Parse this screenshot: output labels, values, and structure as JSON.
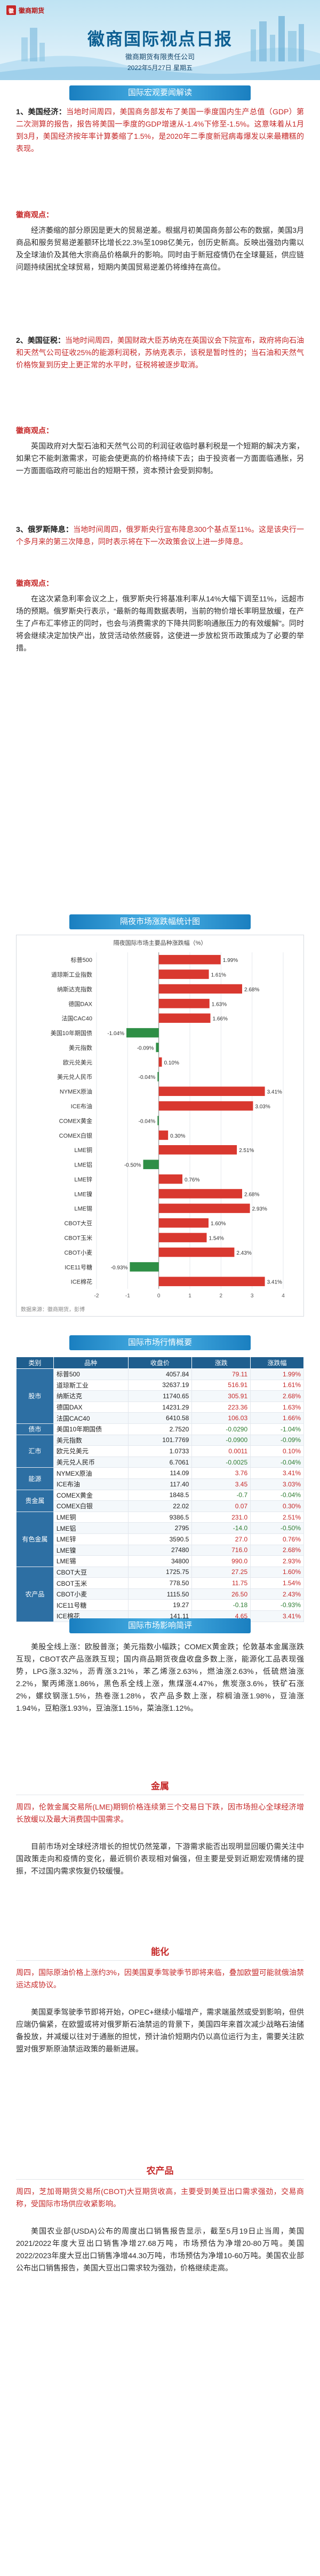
{
  "header": {
    "logo_mark": "徽",
    "logo_text": "徽商期货",
    "title": "徽商国际视点日报",
    "company": "徽商期货有限责任公司",
    "date": "2022年5月27日  星期五"
  },
  "sections": {
    "macro_title": "国际宏观要闻解读",
    "chart_title": "隔夜市场涨跌幅统计图",
    "table_title": "国际市场行情概要",
    "impact_title": "国际市场影响简评"
  },
  "news": [
    {
      "lead_title": "1、美国经济：",
      "lead_body": "当地时间周四，美国商务部发布了美国一季度国内生产总值（GDP）第二次测算的报告，报告将美国一季度的GDP增速从-1.4%下修至-1.5%。这意味着从1月到3月，美国经济按年率计算萎缩了1.5%，是2020年二季度新冠病毒爆发以来最糟糕的表现。",
      "comment_tag": "徽商观点：",
      "comment": "经济萎缩的部分原因是更大的贸易逆差。根据月初美国商务部公布的数据，美国3月商品和服务贸易逆差额环比增长22.3%至1098亿美元，创历史新高。反映出强劲内需以及全球油价及其他大宗商品价格飙升的影响。同时由于新冠疫情仍在全球蔓延，供应链问题持续困扰全球贸易，短期内美国贸易逆差仍将维持在高位。"
    },
    {
      "lead_title": "2、美国征税：",
      "lead_body": "当地时间周四，美国财政大臣苏纳克在英国议会下院宣布，政府将向石油和天然气公司征收25%的能源利润税，苏纳克表示，该税是暂时性的；当石油和天然气价格恢复到历史上更正常的水平时，征税将被逐步取消。",
      "comment_tag": "徽商观点：",
      "comment": "英国政府对大型石油和天然气公司的利润征收临时暴利税是一个短期的解决方案，如果它不能刺激需求，可能会使更高的价格持续下去；由于投资者一方面面临通胀，另一方面面临政府可能出台的短期干预，资本预计会受到抑制。"
    },
    {
      "lead_title": "3、俄罗斯降息：",
      "lead_body": "当地时间周四，俄罗斯央行宣布降息300个基点至11%。这是该央行一个多月来的第三次降息，同时表示将在下一次政策会议上进一步降息。",
      "comment_tag": "徽商观点：",
      "comment": "在这次紧急利率会议之上，俄罗斯央行将基准利率从14%大幅下调至11%，远超市场的预期。俄罗斯央行表示，“最新的每周数据表明，当前的物价增长率明显放缓，在产生了卢布汇率修正的同时，也会与消费需求的下降共同影响通胀压力的有效缓解”。同时将会继续决定加快产出，放贷活动依然疲弱，这使进一步放松货币政策成为了必要的举措。"
    }
  ],
  "chart_data": {
    "type": "bar",
    "title": "隔夜国际市场主要品种涨跌幅（%）",
    "legend": "bottom",
    "categories": [
      "标普500",
      "道琼斯工业指数",
      "纳斯达克指数",
      "德国DAX",
      "法国CAC40",
      "美国10年期国债",
      "美元指数",
      "欧元兑美元",
      "美元兑人民币",
      "NYMEX原油",
      "ICE布油",
      "COMEX黄金",
      "COMEX白银",
      "LME铜",
      "LME铝",
      "LME锌",
      "LME镍",
      "LME锡",
      "CBOT大豆",
      "CBOT玉米",
      "CBOT小麦",
      "ICE11号糖",
      "ICE棉花"
    ],
    "values": [
      1.99,
      1.61,
      2.68,
      1.63,
      1.66,
      -1.04,
      -0.09,
      0.1,
      -0.04,
      3.41,
      3.03,
      -0.04,
      0.3,
      2.51,
      -0.5,
      0.76,
      2.68,
      2.93,
      1.6,
      1.54,
      2.43,
      -0.93,
      3.41
    ],
    "ylabel": "",
    "xlabel": "",
    "ylim": [
      -2,
      4
    ],
    "source_note": "数据来源：徽商期货，彭博"
  },
  "table": {
    "headers": [
      "类别",
      "品种",
      "收盘价",
      "涨跌",
      "涨跌幅"
    ],
    "groups": [
      {
        "name": "股市",
        "rows": [
          [
            "标普500",
            "4057.84",
            "79.11",
            "1.99%"
          ],
          [
            "道琼斯工业",
            "32637.19",
            "516.91",
            "1.61%"
          ],
          [
            "纳斯达克",
            "11740.65",
            "305.91",
            "2.68%"
          ],
          [
            "德国DAX",
            "14231.29",
            "223.36",
            "1.63%"
          ],
          [
            "法国CAC40",
            "6410.58",
            "106.03",
            "1.66%"
          ]
        ]
      },
      {
        "name": "债市",
        "rows": [
          [
            "美国10年期国债",
            "2.7520",
            "-0.0290",
            "-1.04%"
          ]
        ]
      },
      {
        "name": "汇市",
        "rows": [
          [
            "美元指数",
            "101.7769",
            "-0.0900",
            "-0.09%"
          ],
          [
            "欧元兑美元",
            "1.0733",
            "0.0011",
            "0.10%"
          ],
          [
            "美元兑人民币",
            "6.7061",
            "-0.0025",
            "-0.04%"
          ]
        ]
      },
      {
        "name": "能源",
        "rows": [
          [
            "NYMEX原油",
            "114.09",
            "3.76",
            "3.41%"
          ],
          [
            "ICE布油",
            "117.40",
            "3.45",
            "3.03%"
          ]
        ]
      },
      {
        "name": "贵金属",
        "rows": [
          [
            "COMEX黄金",
            "1848.5",
            "-0.7",
            "-0.04%"
          ],
          [
            "COMEX白银",
            "22.02",
            "0.07",
            "0.30%"
          ]
        ]
      },
      {
        "name": "有色金属",
        "rows": [
          [
            "LME铜",
            "9386.5",
            "231.0",
            "2.51%"
          ],
          [
            "LME铝",
            "2795",
            "-14.0",
            "-0.50%"
          ],
          [
            "LME锌",
            "3590.5",
            "27.0",
            "0.76%"
          ],
          [
            "LME镍",
            "27480",
            "716.0",
            "2.68%"
          ],
          [
            "LME锡",
            "34800",
            "990.0",
            "2.93%"
          ]
        ]
      },
      {
        "name": "农产品",
        "rows": [
          [
            "CBOT大豆",
            "1725.75",
            "27.25",
            "1.60%"
          ],
          [
            "CBOT玉米",
            "778.50",
            "11.75",
            "1.54%"
          ],
          [
            "CBOT小麦",
            "1115.50",
            "26.50",
            "2.43%"
          ],
          [
            "ICE11号糖",
            "19.27",
            "-0.18",
            "-0.93%"
          ],
          [
            "ICE棉花",
            "141.11",
            "4.65",
            "3.41%"
          ]
        ]
      }
    ]
  },
  "impact": {
    "intro": "美股全线上涨：欧股普涨；美元指数小幅跌；COMEX黄金跌；伦敦基本金属涨跌互现，CBOT农产品涨跌互现；国内商品期货夜盘收盘多数上涨，能源化工品表现强势，LPG涨3.32%，沥青涨3.21%，苯乙烯涨2.63%，燃油涨2.63%，低硫燃油涨2.2%，聚丙烯涨1.86%，黑色系全线上涨，焦煤涨4.47%，焦炭涨3.6%，铁矿石涨2%，螺纹钢涨1.5%，热卷涨1.28%，农产品多数上涨，棕榈油涨1.98%，豆油涨1.94%，豆粕涨1.93%，豆油涨1.15%，菜油涨1.12%。",
    "blocks": [
      {
        "heading": "金属",
        "lead": "周四，伦敦金属交易所(LME)期铜价格连续第三个交易日下跌，因市场担心全球经济增长放缓以及最大消费国中国需求。",
        "body": "目前市场对全球经济增长的担忧仍然笼罩，下游需求能否出现明显回暖仍需关注中国政策走向和疫情的变化，最近铜价表现相对偏强，但主要是受到近期宏观情绪的提振，不过国内需求恢复仍较缓慢。"
      },
      {
        "heading": "能化",
        "lead": "周四，国际原油价格上涨约3%，因美国夏季驾驶季节即将来临，叠加欧盟可能就俄油禁运达成协议。",
        "body": "美国夏季驾驶季节即将开始，OPEC+继续小幅增产，需求端虽然或受到影响，但供应端仍偏紧，在欧盟或将对俄罗斯石油禁运的背景下，美国四年来首次减少战略石油储备投放，并减缓以往对于通胀的担忧，预计油价短期内仍以高位运行为主，需要关注欧盟对俄罗斯原油禁运政策的最新进展。"
      },
      {
        "heading": "农产品",
        "lead": "周四，芝加哥期货交易所(CBOT)大豆期货收高，主要受到美豆出口需求强劲，交易商称，受国际市场供应收紧影响。",
        "body": "美国农业部(USDA)公布的周度出口销售报告显示，截至5月19日止当周，美国2021/2022年度大豆出口销售净增27.68万吨，市场预估为净增20-80万吨。美国2022/2023年度大豆出口销售净增44.30万吨，市场预估为净增10-60万吨。美国农业部公布出口销售报告，美国大豆出口需求较为强劲，价格继续走高。"
      }
    ]
  }
}
